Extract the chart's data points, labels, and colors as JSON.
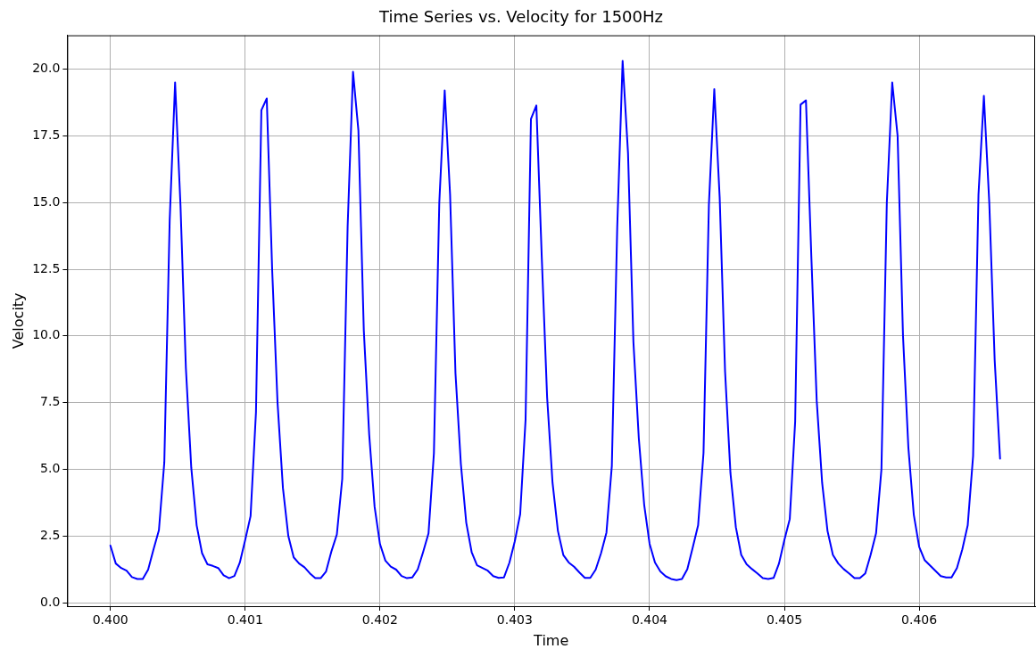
{
  "chart_data": {
    "type": "line",
    "title": "Time Series vs. Velocity for 1500Hz",
    "xlabel": "Time",
    "ylabel": "Velocity",
    "x": [
      0.4,
      0.40004,
      0.40008,
      0.40012,
      0.40016,
      0.4002,
      0.40024,
      0.40028,
      0.40032,
      0.40036,
      0.4004,
      0.40044,
      0.40048,
      0.40052,
      0.40056,
      0.4006,
      0.40064,
      0.40068,
      0.40072,
      0.40076,
      0.4008,
      0.40084,
      0.40088,
      0.40092,
      0.40096,
      0.401,
      0.40104,
      0.40108,
      0.40112,
      0.40116,
      0.4012,
      0.40124,
      0.40128,
      0.40132,
      0.40136,
      0.4014,
      0.40144,
      0.40148,
      0.40152,
      0.40156,
      0.4016,
      0.40164,
      0.40168,
      0.40172,
      0.40176,
      0.4018,
      0.40184,
      0.40188,
      0.40192,
      0.40196,
      0.402,
      0.40204,
      0.40208,
      0.40212,
      0.40216,
      0.4022,
      0.40224,
      0.40228,
      0.40232,
      0.40236,
      0.4024,
      0.40244,
      0.40248,
      0.40252,
      0.40256,
      0.4026,
      0.40264,
      0.40268,
      0.40272,
      0.40276,
      0.4028,
      0.40284,
      0.40288,
      0.40292,
      0.40296,
      0.403,
      0.40304,
      0.40308,
      0.40312,
      0.40316,
      0.4032,
      0.40324,
      0.40328,
      0.40332,
      0.40336,
      0.4034,
      0.40344,
      0.40348,
      0.40352,
      0.40356,
      0.4036,
      0.40364,
      0.40368,
      0.40372,
      0.40376,
      0.4038,
      0.40384,
      0.40388,
      0.40392,
      0.40396,
      0.404,
      0.40404,
      0.40408,
      0.40412,
      0.40416,
      0.4042,
      0.40424,
      0.40428,
      0.40432,
      0.40436,
      0.4044,
      0.40444,
      0.40448,
      0.40452,
      0.40456,
      0.4046,
      0.40464,
      0.40468,
      0.40472,
      0.40476,
      0.4048,
      0.40484,
      0.40488,
      0.40492,
      0.40496,
      0.405,
      0.40504,
      0.40508,
      0.40512,
      0.40516,
      0.4052,
      0.40524,
      0.40528,
      0.40532,
      0.40536,
      0.4054,
      0.40544,
      0.40548,
      0.40552,
      0.40556,
      0.4056,
      0.40564,
      0.40568,
      0.40572,
      0.40576,
      0.4058,
      0.40584,
      0.40588,
      0.40592,
      0.40596,
      0.406,
      0.40604,
      0.40608,
      0.40612,
      0.40616,
      0.4062,
      0.40624,
      0.40628,
      0.40632,
      0.40636,
      0.4064,
      0.40644,
      0.40648,
      0.40652,
      0.40656,
      0.4066
    ],
    "series": [
      {
        "color": "#0000ff",
        "values": [
          2.14,
          1.47,
          1.3,
          1.2,
          0.96,
          0.89,
          0.89,
          1.24,
          2.0,
          2.72,
          5.26,
          14.36,
          19.5,
          14.9,
          8.8,
          5.06,
          2.9,
          1.86,
          1.44,
          1.38,
          1.3,
          1.03,
          0.92,
          1.0,
          1.5,
          2.35,
          3.25,
          7.14,
          18.46,
          18.9,
          12.5,
          7.5,
          4.3,
          2.5,
          1.7,
          1.47,
          1.33,
          1.1,
          0.92,
          0.92,
          1.17,
          1.93,
          2.56,
          4.64,
          14.1,
          19.9,
          17.7,
          10.2,
          6.3,
          3.6,
          2.2,
          1.58,
          1.35,
          1.24,
          1.0,
          0.92,
          0.95,
          1.25,
          1.9,
          2.6,
          5.6,
          15.0,
          19.2,
          15.3,
          8.6,
          5.2,
          3.0,
          1.9,
          1.4,
          1.3,
          1.2,
          1.0,
          0.93,
          0.95,
          1.5,
          2.3,
          3.32,
          6.86,
          18.14,
          18.64,
          12.97,
          7.69,
          4.5,
          2.69,
          1.79,
          1.51,
          1.35,
          1.13,
          0.93,
          0.93,
          1.24,
          1.86,
          2.63,
          5.13,
          14.08,
          20.31,
          16.86,
          9.78,
          6.17,
          3.67,
          2.21,
          1.51,
          1.17,
          0.99,
          0.89,
          0.85,
          0.89,
          1.26,
          2.07,
          2.9,
          5.61,
          14.92,
          19.25,
          15.19,
          8.67,
          4.85,
          2.83,
          1.79,
          1.44,
          1.26,
          1.1,
          0.92,
          0.89,
          0.93,
          1.47,
          2.35,
          3.14,
          6.79,
          18.67,
          18.83,
          12.97,
          7.56,
          4.5,
          2.69,
          1.79,
          1.47,
          1.26,
          1.1,
          0.92,
          0.92,
          1.1,
          1.8,
          2.6,
          5.0,
          15.0,
          19.5,
          17.5,
          10.0,
          5.8,
          3.3,
          2.1,
          1.6,
          1.4,
          1.2,
          1.0,
          0.95,
          0.95,
          1.3,
          2.0,
          2.9,
          5.5,
          15.3,
          19.0,
          15.0,
          9.1,
          5.4
        ]
      }
    ],
    "xlim": [
      0.39968,
      0.40686
    ],
    "ylim": [
      -0.13,
      21.27
    ],
    "xticks": [
      {
        "value": 0.4,
        "label": "0.400"
      },
      {
        "value": 0.401,
        "label": "0.401"
      },
      {
        "value": 0.402,
        "label": "0.402"
      },
      {
        "value": 0.403,
        "label": "0.403"
      },
      {
        "value": 0.404,
        "label": "0.404"
      },
      {
        "value": 0.405,
        "label": "0.405"
      },
      {
        "value": 0.406,
        "label": "0.406"
      }
    ],
    "yticks": [
      {
        "value": 0,
        "label": "0.0"
      },
      {
        "value": 2.5,
        "label": "2.5"
      },
      {
        "value": 5,
        "label": "5.0"
      },
      {
        "value": 7.5,
        "label": "7.5"
      },
      {
        "value": 10,
        "label": "10.0"
      },
      {
        "value": 12.5,
        "label": "12.5"
      },
      {
        "value": 15,
        "label": "15.0"
      },
      {
        "value": 17.5,
        "label": "17.5"
      },
      {
        "value": 20,
        "label": "20.0"
      }
    ],
    "grid": true,
    "marker": "none",
    "line_style": "solid",
    "legend": false
  }
}
